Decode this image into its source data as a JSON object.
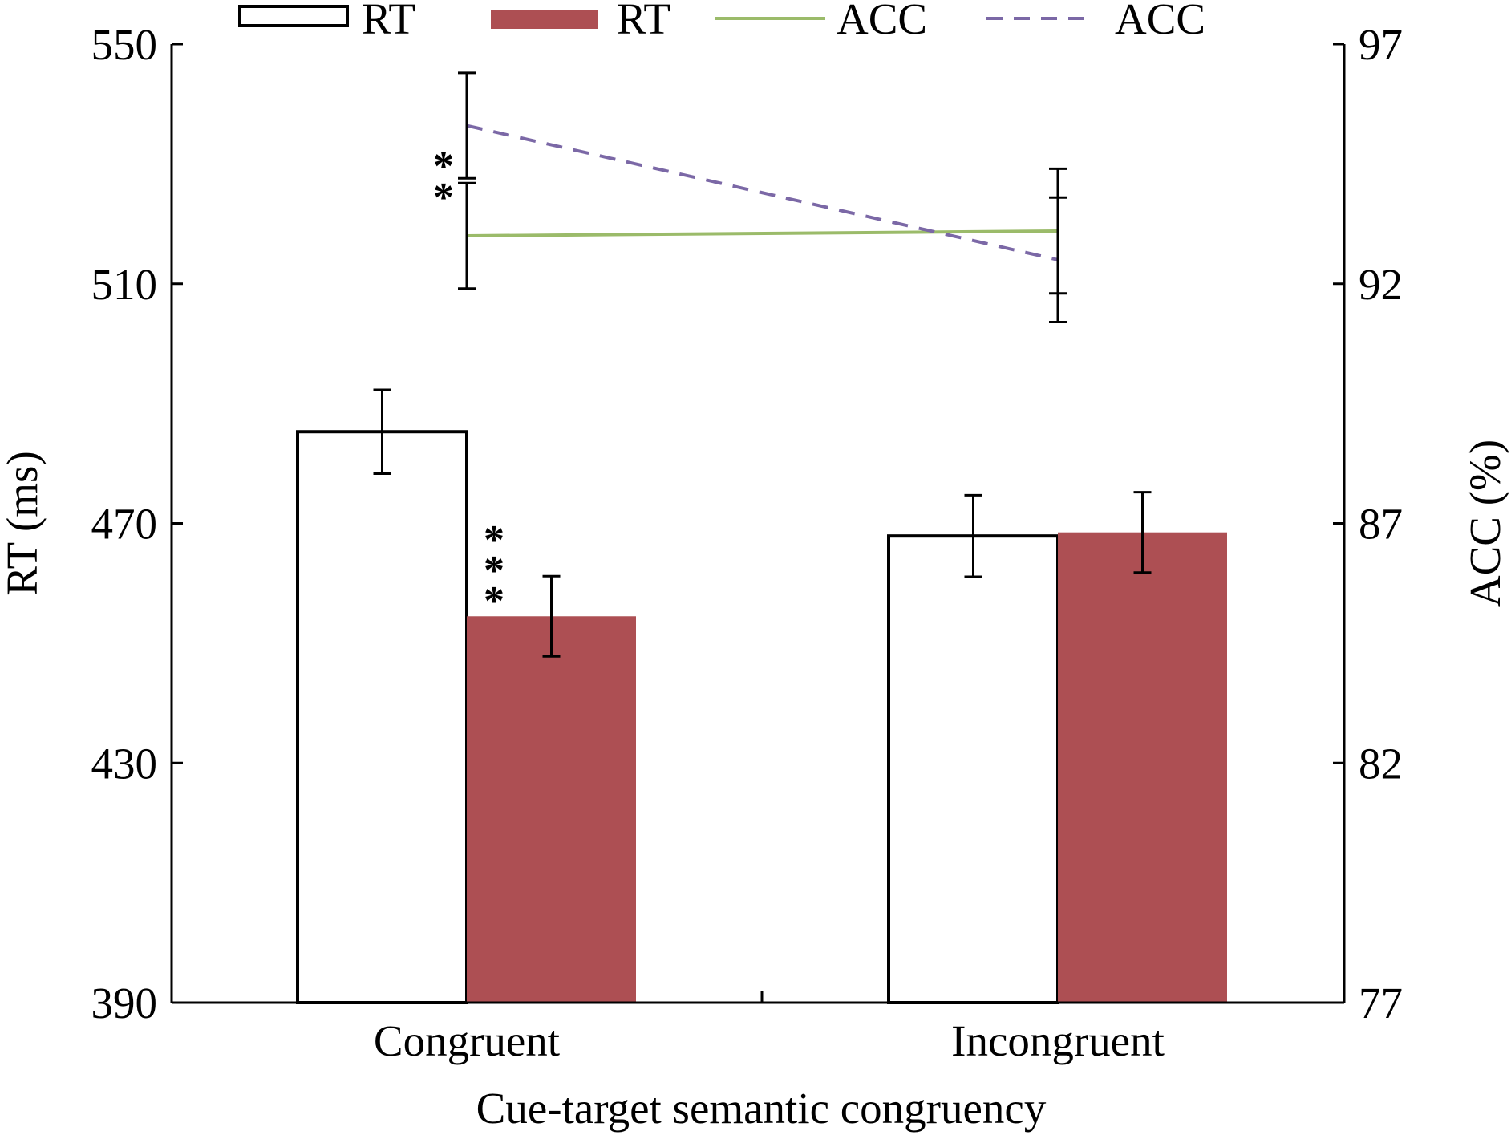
{
  "chart_data": {
    "type": "bar",
    "title": "",
    "xlabel": "Cue-target semantic congruency",
    "ylabel": "RT (ms)",
    "y2label": "ACC (%)",
    "categories": [
      "Congruent",
      "Incongruent"
    ],
    "ylim": [
      390,
      550
    ],
    "yticks": [
      390,
      430,
      470,
      510,
      550
    ],
    "y2lim": [
      77,
      97
    ],
    "y2ticks": [
      77,
      82,
      87,
      92,
      97
    ],
    "grid": false,
    "legend_position": "top",
    "bar_series": [
      {
        "name": "RT",
        "style": "white-outline",
        "color": "#ffffff",
        "stroke": "#000000",
        "values": [
          485.3,
          467.9
        ],
        "errors": [
          7.0,
          6.8
        ]
      },
      {
        "name": "RT",
        "style": "filled",
        "color": "#ad4f53",
        "values": [
          454.5,
          468.5
        ],
        "errors": [
          6.7,
          6.7
        ]
      }
    ],
    "line_series": [
      {
        "name": "ACC",
        "style": "solid",
        "color": "#9bbb6a",
        "axis": "right",
        "values": [
          93.0,
          93.1
        ],
        "errors": [
          1.1,
          1.3
        ]
      },
      {
        "name": "ACC",
        "style": "dashed",
        "color": "#7b68a6",
        "axis": "right",
        "values": [
          95.3,
          92.5
        ],
        "errors": [
          1.1,
          1.3
        ]
      }
    ],
    "annotations": [
      {
        "text": "**",
        "category": "Congruent",
        "target": "ACC"
      },
      {
        "text": "***",
        "category": "Congruent",
        "target": "RT"
      }
    ],
    "legend": [
      "RT",
      "RT",
      "ACC",
      "ACC"
    ]
  }
}
